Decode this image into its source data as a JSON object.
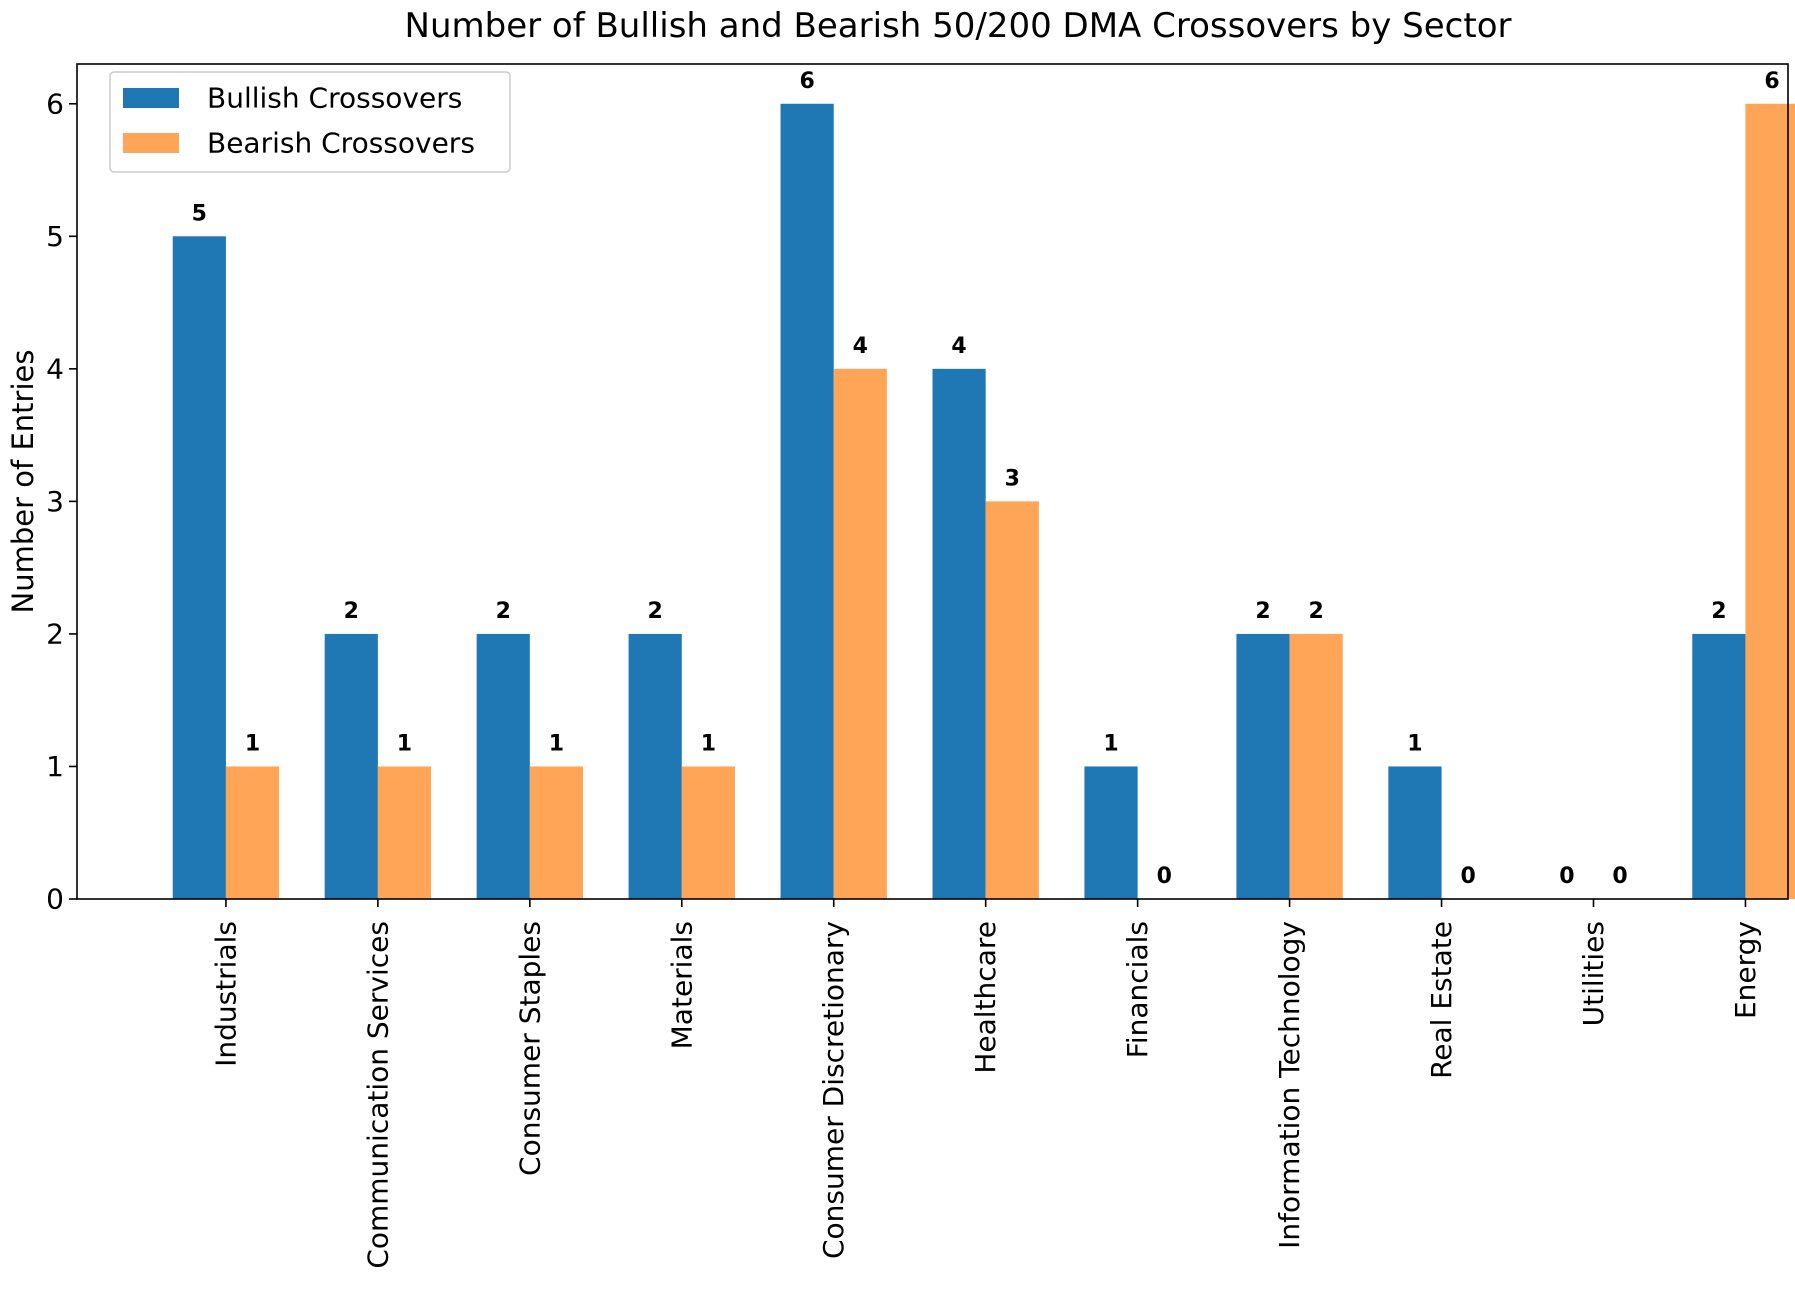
{
  "chart_data": {
    "type": "bar",
    "title": "Number of Bullish and Bearish 50/200 DMA Crossovers by Sector",
    "xlabel": "",
    "ylabel": "Number of Entries",
    "ylim": [
      0,
      6.3
    ],
    "yticks": [
      0,
      1,
      2,
      3,
      4,
      5,
      6
    ],
    "grid": false,
    "legend_position": "top-left",
    "categories": [
      "Industrials",
      "Communication Services",
      "Consumer Staples",
      "Materials",
      "Consumer Discretionary",
      "Healthcare",
      "Financials",
      "Information Technology",
      "Real Estate",
      "Utilities",
      "Energy"
    ],
    "series": [
      {
        "name": "Bullish Crossovers",
        "color": "#1f77b4",
        "values": [
          5,
          2,
          2,
          2,
          6,
          4,
          1,
          2,
          1,
          0,
          2
        ]
      },
      {
        "name": "Bearish Crossovers",
        "color": "#ffa557",
        "values": [
          1,
          1,
          1,
          1,
          4,
          3,
          0,
          2,
          0,
          0,
          6
        ]
      }
    ]
  }
}
